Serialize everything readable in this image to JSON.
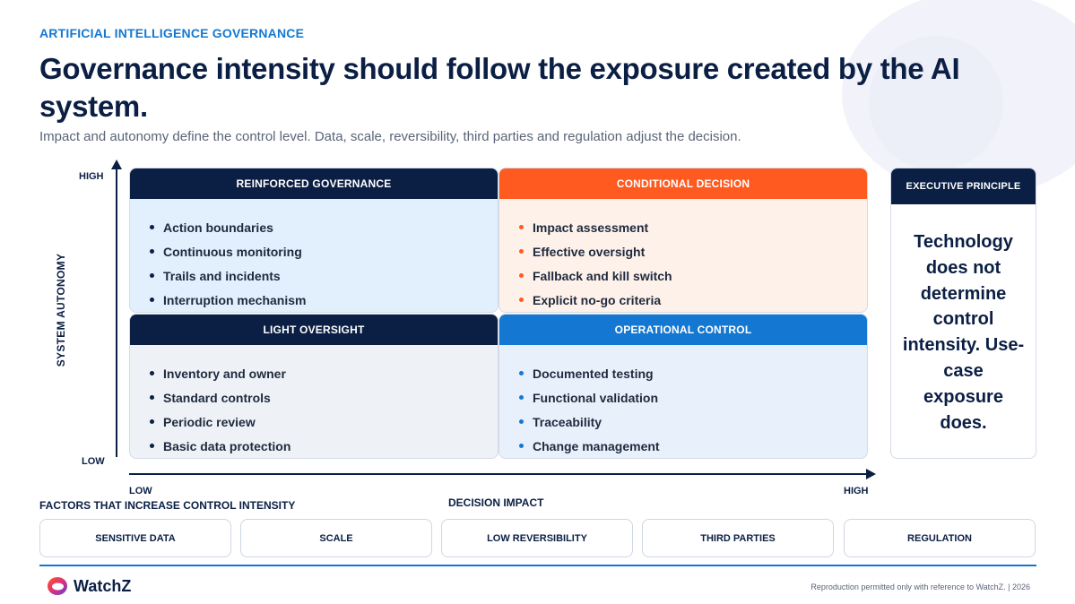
{
  "eyebrow": "ARTIFICIAL INTELLIGENCE GOVERNANCE",
  "title": "Governance intensity should follow the exposure created by the AI system.",
  "subtitle": "Impact and autonomy define the control level. Data, scale, reversibility, third parties and regulation adjust the decision.",
  "axes": {
    "y_title": "SYSTEM AUTONOMY",
    "y_high": "HIGH",
    "y_low": "LOW",
    "x_title": "DECISION IMPACT",
    "x_low": "LOW",
    "x_high": "HIGH"
  },
  "quadrants": {
    "reinforced": {
      "title": "REINFORCED GOVERNANCE",
      "items": [
        "Action boundaries",
        "Continuous monitoring",
        "Trails and incidents",
        "Interruption mechanism"
      ]
    },
    "conditional": {
      "title": "CONDITIONAL DECISION",
      "items": [
        "Impact assessment",
        "Effective oversight",
        "Fallback and kill switch",
        "Explicit no-go criteria"
      ]
    },
    "light": {
      "title": "LIGHT OVERSIGHT",
      "items": [
        "Inventory and owner",
        "Standard controls",
        "Periodic review",
        "Basic data protection"
      ]
    },
    "operational": {
      "title": "OPERATIONAL CONTROL",
      "items": [
        "Documented testing",
        "Functional validation",
        "Traceability",
        "Change management"
      ]
    }
  },
  "executive": {
    "title": "EXECUTIVE PRINCIPLE",
    "text": "Technology does not determine control intensity. Use-case exposure does."
  },
  "factors": {
    "title": "FACTORS THAT INCREASE CONTROL INTENSITY",
    "items": [
      "SENSITIVE DATA",
      "SCALE",
      "LOW REVERSIBILITY",
      "THIRD PARTIES",
      "REGULATION"
    ]
  },
  "footer": {
    "brand": "WatchZ",
    "note": "Reproduction permitted only with reference to WatchZ.  |  2026"
  },
  "colors": {
    "navy": "#0b1f44",
    "orange": "#ff5a1f",
    "blue": "#1478d2"
  }
}
